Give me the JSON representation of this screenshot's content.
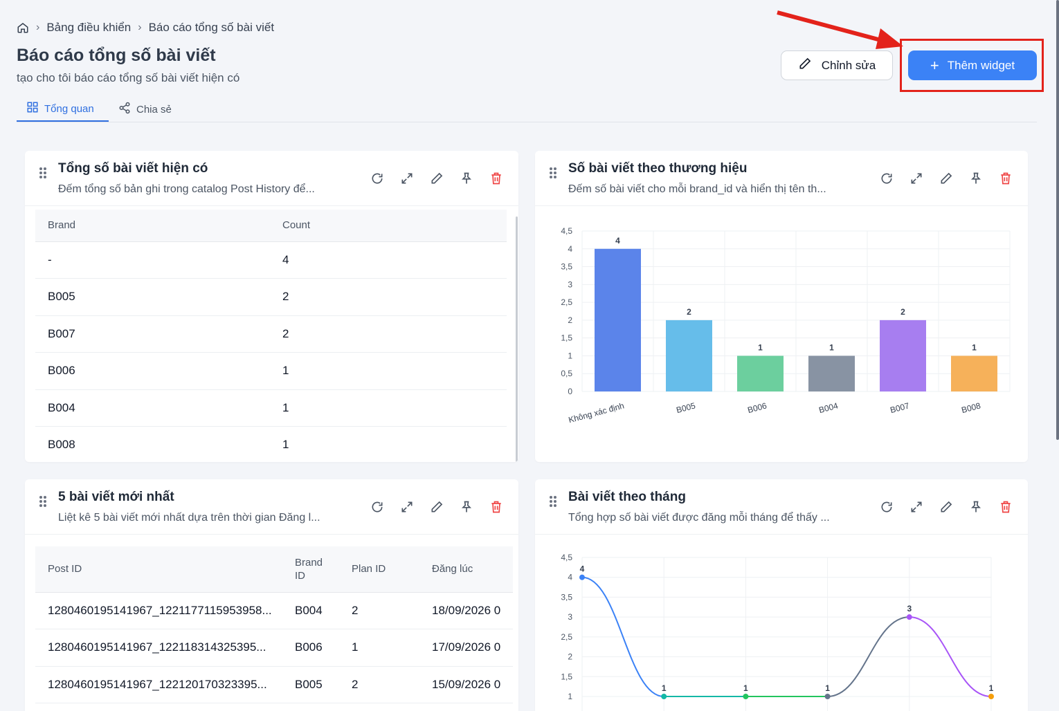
{
  "breadcrumb": {
    "home_icon": "home-icon",
    "items": [
      "Bảng điều khiển",
      "Báo cáo tổng số bài viết"
    ]
  },
  "page": {
    "title": "Báo cáo tổng số bài viết",
    "subtitle": "tạo cho tôi báo cáo tổng số bài viết hiện có"
  },
  "tabs": [
    {
      "label": "Tổng quan",
      "icon": "grid-icon",
      "active": true
    },
    {
      "label": "Chia sẻ",
      "icon": "share-icon",
      "active": false
    }
  ],
  "actions": {
    "edit_label": "Chỉnh sửa",
    "add_label": "Thêm widget",
    "accent": "#3b82f6",
    "annotation_color": "#e3231b"
  },
  "widgets": [
    {
      "title": "Tổng số bài viết hiện có",
      "description": "Đếm tổng số bản ghi trong catalog Post History để...",
      "table": {
        "columns": [
          "Brand",
          "Count"
        ],
        "rows": [
          [
            "-",
            "4"
          ],
          [
            "B005",
            "2"
          ],
          [
            "B007",
            "2"
          ],
          [
            "B006",
            "1"
          ],
          [
            "B004",
            "1"
          ],
          [
            "B008",
            "1"
          ]
        ]
      }
    },
    {
      "title": "Số bài viết theo thương hiệu",
      "description": "Đếm số bài viết cho mỗi brand_id và hiển thị tên th..."
    },
    {
      "title": "5 bài viết mới nhất",
      "description": "Liệt kê 5 bài viết mới nhất dựa trên thời gian Đăng l...",
      "table": {
        "columns": [
          "Post ID",
          "Brand ID",
          "Plan ID",
          "Đăng lúc"
        ],
        "rows": [
          [
            "1280460195141967_1221177115953958...",
            "B004",
            "2",
            "18/09/2026 0"
          ],
          [
            "1280460195141967_122118314325395...",
            "B006",
            "1",
            "17/09/2026 0"
          ],
          [
            "1280460195141967_122120170323395...",
            "B005",
            "2",
            "15/09/2026 0"
          ]
        ]
      }
    },
    {
      "title": "Bài viết theo tháng",
      "description": "Tổng hợp số bài viết được đăng mỗi tháng để thấy ..."
    }
  ],
  "chart_data": [
    {
      "type": "bar",
      "categories": [
        "Không xác định",
        "B005",
        "B006",
        "B004",
        "B007",
        "B008"
      ],
      "values": [
        4,
        2,
        1,
        1,
        2,
        1
      ],
      "colors": [
        "#5b84ea",
        "#66bdea",
        "#6ccf9e",
        "#8893a3",
        "#a77ef0",
        "#f6b15a"
      ],
      "ylim": [
        0,
        4.5
      ],
      "yticks": [
        "0",
        "0,5",
        "1",
        "1,5",
        "2",
        "2,5",
        "3",
        "3,5",
        "4",
        "4,5"
      ],
      "data_labels": [
        "4",
        "2",
        "1",
        "1",
        "2",
        "1"
      ],
      "grid": true
    },
    {
      "type": "line",
      "values": [
        4,
        1,
        1,
        1,
        3,
        1
      ],
      "colors": [
        "#3b82f6",
        "#14b8a6",
        "#22c55e",
        "#64748b",
        "#a855f7",
        "#f59e0b"
      ],
      "ylim": [
        1,
        4.5
      ],
      "yticks": [
        "1",
        "1,5",
        "2",
        "2,5",
        "3",
        "3,5",
        "4",
        "4,5"
      ],
      "data_labels": [
        "4",
        "1",
        "1",
        "1",
        "3",
        "1"
      ],
      "grid": true
    }
  ]
}
